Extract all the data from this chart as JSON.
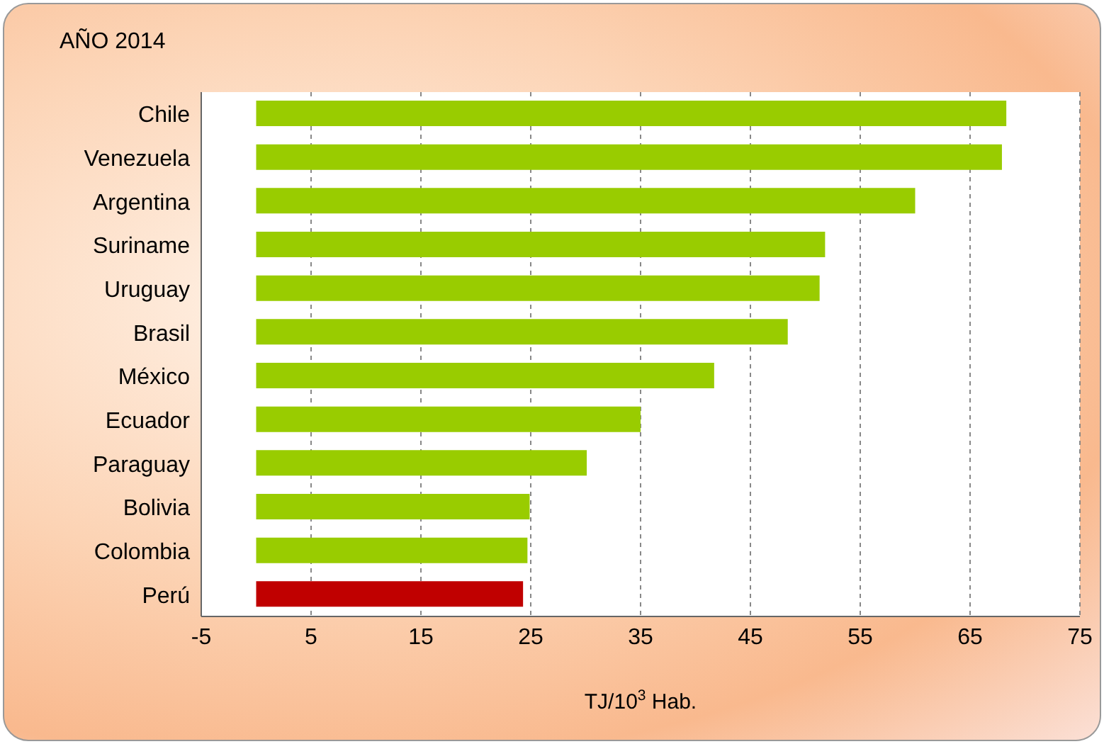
{
  "chart_data": {
    "type": "bar",
    "orientation": "horizontal",
    "title": "AÑO 2014",
    "xlabel": "TJ/10$^{3}$ Hab.",
    "categories": [
      "Chile",
      "Venezuela",
      "Argentina",
      "Suriname",
      "Uruguay",
      "Brasil",
      "México",
      "Ecuador",
      "Paraguay",
      "Bolivia",
      "Colombia",
      "Perú"
    ],
    "values": [
      68.3,
      67.9,
      60.0,
      51.8,
      51.3,
      48.4,
      41.7,
      35.0,
      30.1,
      24.9,
      24.7,
      24.3
    ],
    "colors": [
      "#99cc00",
      "#99cc00",
      "#99cc00",
      "#99cc00",
      "#99cc00",
      "#99cc00",
      "#99cc00",
      "#99cc00",
      "#99cc00",
      "#99cc00",
      "#99cc00",
      "#c00000"
    ],
    "xlim": [
      -5,
      75
    ],
    "xticks": [
      -5,
      5,
      15,
      25,
      35,
      45,
      55,
      65,
      75
    ],
    "grid": "x"
  }
}
